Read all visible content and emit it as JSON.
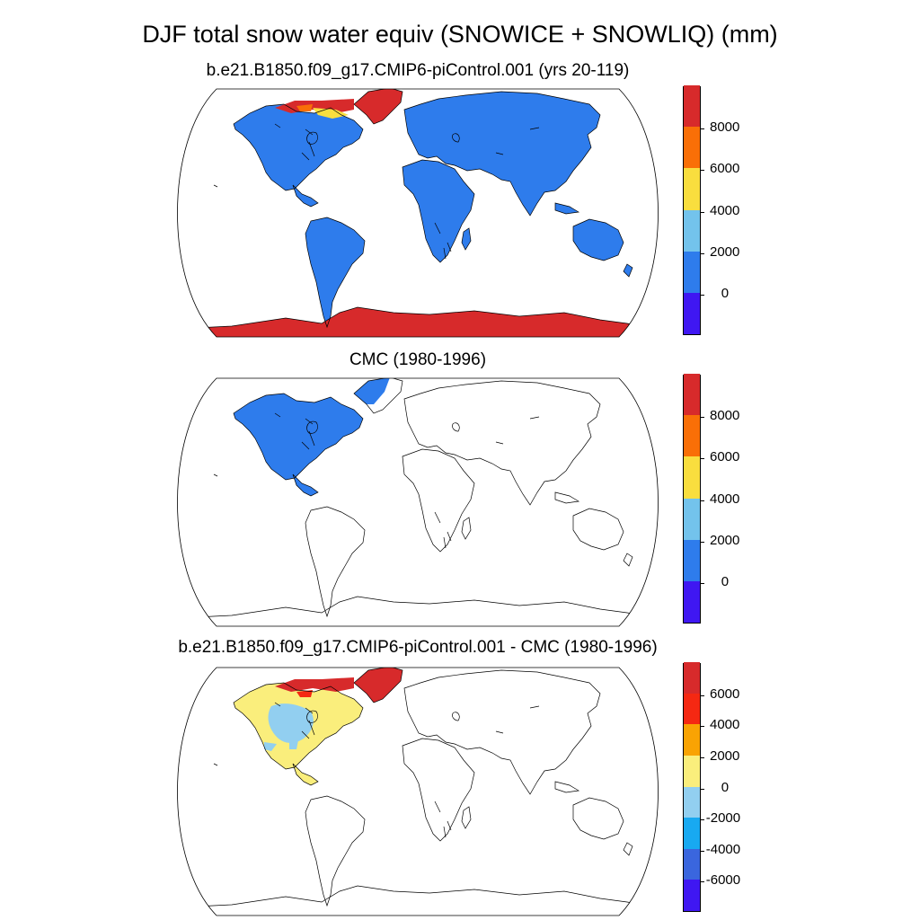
{
  "title": "DJF total snow water equiv (SNOWICE + SNOWLIQ) (mm)",
  "panels": [
    {
      "title": "b.e21.B1850.f09_g17.CMIP6-piControl.001 (yrs 20-119)",
      "colorbar": {
        "colors": [
          "#3f17f2",
          "#2e7cec",
          "#73c3ec",
          "#f9de3e",
          "#f96f07",
          "#d72a2b"
        ],
        "labels": [
          "0",
          "2000",
          "4000",
          "6000",
          "8000"
        ]
      }
    },
    {
      "title": "CMC (1980-1996)",
      "colorbar": {
        "colors": [
          "#3f17f2",
          "#2e7cec",
          "#73c3ec",
          "#f9de3e",
          "#f96f07",
          "#d72a2b"
        ],
        "labels": [
          "0",
          "2000",
          "4000",
          "6000",
          "8000"
        ]
      }
    },
    {
      "title": "b.e21.B1850.f09_g17.CMIP6-piControl.001 - CMC (1980-1996)",
      "colorbar": {
        "colors": [
          "#3f17f2",
          "#3a66de",
          "#18a9f1",
          "#92cff0",
          "#faee7c",
          "#f9a303",
          "#f52812",
          "#d72a2b"
        ],
        "labels": [
          "-6000",
          "-4000",
          "-2000",
          "0",
          "2000",
          "4000",
          "6000"
        ]
      }
    }
  ]
}
